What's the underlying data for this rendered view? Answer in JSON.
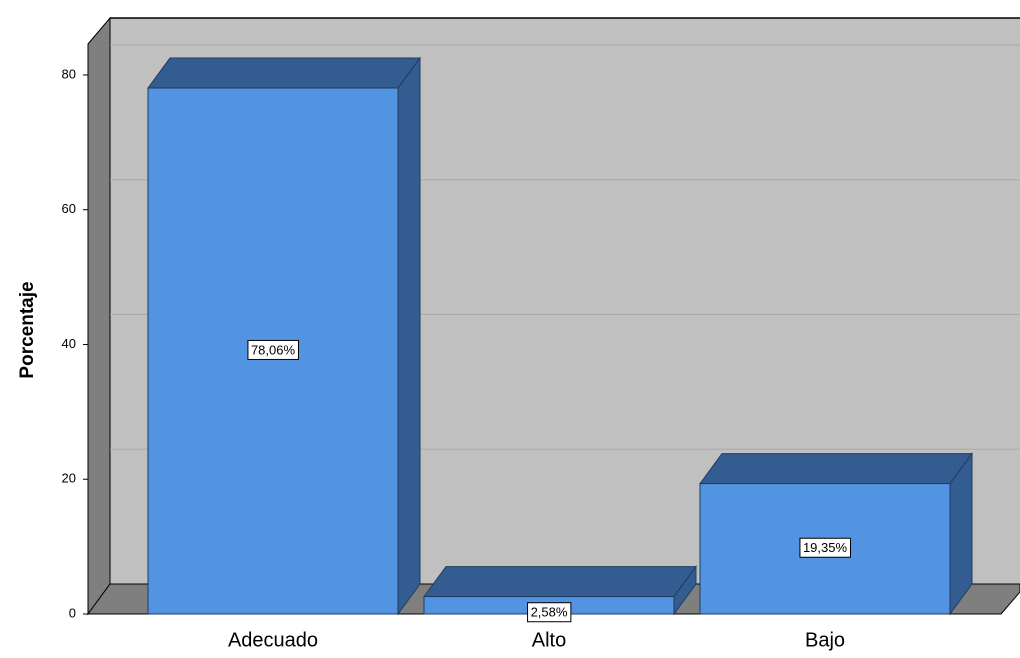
{
  "chart_data": {
    "type": "bar3d",
    "y_axis_label": "Porcentaje",
    "categories": [
      "Adecuado",
      "Alto",
      "Bajo"
    ],
    "values": [
      78.06,
      2.58,
      19.35
    ],
    "value_labels": [
      "78,06%",
      "2,58%",
      "19,35%"
    ],
    "color": "#5294e2",
    "side_color": "#335d91",
    "ylim": [
      0,
      84
    ],
    "yticks": [
      0,
      20,
      40,
      60,
      80
    ],
    "grid": true
  }
}
